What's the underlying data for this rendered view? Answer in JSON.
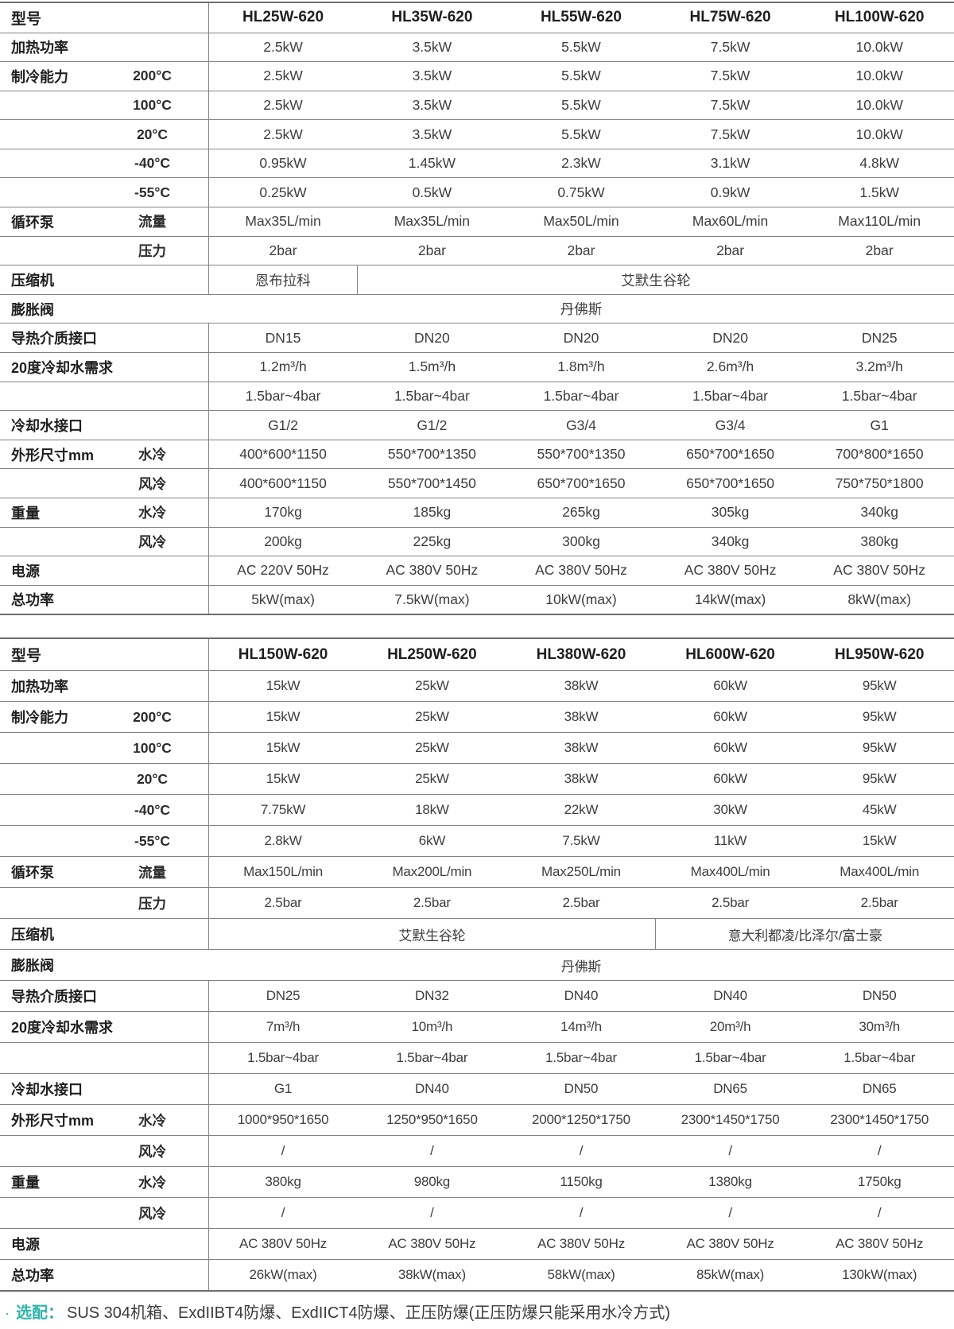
{
  "colors": {
    "accent_teal": "#2eb6ab",
    "border_gray": "#838383",
    "text_dark": "#3d3d3d"
  },
  "note": {
    "bullet": "·",
    "prefix": "选配：",
    "text": "SUS 304机箱、ExdIIBT4防爆、ExdIICT4防爆、正压防爆(正压防爆只能采用水冷方式)"
  },
  "tables": [
    {
      "header": {
        "label": "型号",
        "models": [
          "HL25W-620",
          "HL35W-620",
          "HL55W-620",
          "HL75W-620",
          "HL100W-620"
        ]
      },
      "rows": [
        {
          "label": "加热功率",
          "sub": "",
          "cells": [
            {
              "t": "2.5kW"
            },
            {
              "t": "3.5kW"
            },
            {
              "t": "5.5kW"
            },
            {
              "t": "7.5kW"
            },
            {
              "t": "10.0kW"
            }
          ]
        },
        {
          "label": "制冷能力",
          "sub": "200°C",
          "cells": [
            {
              "t": "2.5kW"
            },
            {
              "t": "3.5kW"
            },
            {
              "t": "5.5kW"
            },
            {
              "t": "7.5kW"
            },
            {
              "t": "10.0kW"
            }
          ]
        },
        {
          "label": "",
          "sub": "100°C",
          "cells": [
            {
              "t": "2.5kW"
            },
            {
              "t": "3.5kW"
            },
            {
              "t": "5.5kW"
            },
            {
              "t": "7.5kW"
            },
            {
              "t": "10.0kW"
            }
          ]
        },
        {
          "label": "",
          "sub": "20°C",
          "cells": [
            {
              "t": "2.5kW"
            },
            {
              "t": "3.5kW"
            },
            {
              "t": "5.5kW"
            },
            {
              "t": "7.5kW"
            },
            {
              "t": "10.0kW"
            }
          ]
        },
        {
          "label": "",
          "sub": "-40°C",
          "cells": [
            {
              "t": "0.95kW"
            },
            {
              "t": "1.45kW"
            },
            {
              "t": "2.3kW"
            },
            {
              "t": "3.1kW"
            },
            {
              "t": "4.8kW"
            }
          ]
        },
        {
          "label": "",
          "sub": "-55°C",
          "cells": [
            {
              "t": "0.25kW"
            },
            {
              "t": "0.5kW"
            },
            {
              "t": "0.75kW"
            },
            {
              "t": "0.9kW"
            },
            {
              "t": "1.5kW"
            }
          ]
        },
        {
          "label": "循环泵",
          "sub": "流量",
          "cells": [
            {
              "t": "Max35L/min"
            },
            {
              "t": "Max35L/min"
            },
            {
              "t": "Max50L/min"
            },
            {
              "t": "Max60L/min"
            },
            {
              "t": "Max110L/min"
            }
          ]
        },
        {
          "label": "",
          "sub": "压力",
          "cells": [
            {
              "t": "2bar"
            },
            {
              "t": "2bar"
            },
            {
              "t": "2bar"
            },
            {
              "t": "2bar"
            },
            {
              "t": "2bar"
            }
          ]
        },
        {
          "label": "压缩机",
          "sub": "",
          "cells": [
            {
              "t": "恩布拉科",
              "s": 1
            },
            {
              "t": "艾默生谷轮",
              "s": 4
            }
          ]
        },
        {
          "label": "膨胀阀",
          "sub": "",
          "cells": [
            {
              "t": "丹佛斯",
              "s": 5
            }
          ]
        },
        {
          "label": "导热介质接口",
          "sub": "",
          "cells": [
            {
              "t": "DN15"
            },
            {
              "t": "DN20"
            },
            {
              "t": "DN20"
            },
            {
              "t": "DN20"
            },
            {
              "t": "DN25"
            }
          ]
        },
        {
          "label": "20度冷却水需求",
          "sub": "",
          "cells": [
            {
              "t": "1.2m³/h"
            },
            {
              "t": "1.5m³/h"
            },
            {
              "t": "1.8m³/h"
            },
            {
              "t": "2.6m³/h"
            },
            {
              "t": "3.2m³/h"
            }
          ]
        },
        {
          "label": "",
          "sub": "",
          "cells": [
            {
              "t": "1.5bar~4bar"
            },
            {
              "t": "1.5bar~4bar"
            },
            {
              "t": "1.5bar~4bar"
            },
            {
              "t": "1.5bar~4bar"
            },
            {
              "t": "1.5bar~4bar"
            }
          ]
        },
        {
          "label": "冷却水接口",
          "sub": "",
          "cells": [
            {
              "t": "G1/2"
            },
            {
              "t": "G1/2"
            },
            {
              "t": "G3/4"
            },
            {
              "t": "G3/4"
            },
            {
              "t": "G1"
            }
          ]
        },
        {
          "label": "外形尺寸mm",
          "sub": "水冷",
          "cells": [
            {
              "t": "400*600*1150"
            },
            {
              "t": "550*700*1350"
            },
            {
              "t": "550*700*1350"
            },
            {
              "t": "650*700*1650"
            },
            {
              "t": "700*800*1650"
            }
          ]
        },
        {
          "label": "",
          "sub": "风冷",
          "cells": [
            {
              "t": "400*600*1150"
            },
            {
              "t": "550*700*1450"
            },
            {
              "t": "650*700*1650"
            },
            {
              "t": "650*700*1650"
            },
            {
              "t": "750*750*1800"
            }
          ]
        },
        {
          "label": "重量",
          "sub": "水冷",
          "cells": [
            {
              "t": "170kg"
            },
            {
              "t": "185kg"
            },
            {
              "t": "265kg"
            },
            {
              "t": "305kg"
            },
            {
              "t": "340kg"
            }
          ]
        },
        {
          "label": "",
          "sub": "风冷",
          "cells": [
            {
              "t": "200kg"
            },
            {
              "t": "225kg"
            },
            {
              "t": "300kg"
            },
            {
              "t": "340kg"
            },
            {
              "t": "380kg"
            }
          ]
        },
        {
          "label": "电源",
          "sub": "",
          "cells": [
            {
              "t": "AC 220V 50Hz"
            },
            {
              "t": "AC 380V 50Hz"
            },
            {
              "t": "AC 380V 50Hz"
            },
            {
              "t": "AC 380V 50Hz"
            },
            {
              "t": "AC 380V 50Hz"
            }
          ]
        },
        {
          "label": "总功率",
          "sub": "",
          "cells": [
            {
              "t": "5kW(max)"
            },
            {
              "t": "7.5kW(max)"
            },
            {
              "t": "10kW(max)"
            },
            {
              "t": "14kW(max)"
            },
            {
              "t": "8kW(max)"
            }
          ]
        }
      ]
    },
    {
      "header": {
        "label": "型号",
        "models": [
          "HL150W-620",
          "HL250W-620",
          "HL380W-620",
          "HL600W-620",
          "HL950W-620"
        ]
      },
      "rows": [
        {
          "label": "加热功率",
          "sub": "",
          "cells": [
            {
              "t": "15kW"
            },
            {
              "t": "25kW"
            },
            {
              "t": "38kW"
            },
            {
              "t": "60kW"
            },
            {
              "t": "95kW"
            }
          ]
        },
        {
          "label": "制冷能力",
          "sub": "200°C",
          "cells": [
            {
              "t": "15kW"
            },
            {
              "t": "25kW"
            },
            {
              "t": "38kW"
            },
            {
              "t": "60kW"
            },
            {
              "t": "95kW"
            }
          ]
        },
        {
          "label": "",
          "sub": "100°C",
          "cells": [
            {
              "t": "15kW"
            },
            {
              "t": "25kW"
            },
            {
              "t": "38kW"
            },
            {
              "t": "60kW"
            },
            {
              "t": "95kW"
            }
          ]
        },
        {
          "label": "",
          "sub": "20°C",
          "cells": [
            {
              "t": "15kW"
            },
            {
              "t": "25kW"
            },
            {
              "t": "38kW"
            },
            {
              "t": "60kW"
            },
            {
              "t": "95kW"
            }
          ]
        },
        {
          "label": "",
          "sub": "-40°C",
          "cells": [
            {
              "t": "7.75kW"
            },
            {
              "t": "18kW"
            },
            {
              "t": "22kW"
            },
            {
              "t": "30kW"
            },
            {
              "t": "45kW"
            }
          ]
        },
        {
          "label": "",
          "sub": "-55°C",
          "cells": [
            {
              "t": "2.8kW"
            },
            {
              "t": "6kW"
            },
            {
              "t": "7.5kW"
            },
            {
              "t": "11kW"
            },
            {
              "t": "15kW"
            }
          ]
        },
        {
          "label": "循环泵",
          "sub": "流量",
          "cells": [
            {
              "t": "Max150L/min"
            },
            {
              "t": "Max200L/min"
            },
            {
              "t": "Max250L/min"
            },
            {
              "t": "Max400L/min"
            },
            {
              "t": "Max400L/min"
            }
          ]
        },
        {
          "label": "",
          "sub": "压力",
          "cells": [
            {
              "t": "2.5bar"
            },
            {
              "t": "2.5bar"
            },
            {
              "t": "2.5bar"
            },
            {
              "t": "2.5bar"
            },
            {
              "t": "2.5bar"
            }
          ]
        },
        {
          "label": "压缩机",
          "sub": "",
          "cells": [
            {
              "t": "艾默生谷轮",
              "s": 3
            },
            {
              "t": "意大利都凌/比泽尔/富士豪",
              "s": 2
            }
          ]
        },
        {
          "label": "膨胀阀",
          "sub": "",
          "cells": [
            {
              "t": "丹佛斯",
              "s": 5
            }
          ]
        },
        {
          "label": "导热介质接口",
          "sub": "",
          "cells": [
            {
              "t": "DN25"
            },
            {
              "t": "DN32"
            },
            {
              "t": "DN40"
            },
            {
              "t": "DN40"
            },
            {
              "t": "DN50"
            }
          ]
        },
        {
          "label": "20度冷却水需求",
          "sub": "",
          "cells": [
            {
              "t": "7m³/h"
            },
            {
              "t": "10m³/h"
            },
            {
              "t": "14m³/h"
            },
            {
              "t": "20m³/h"
            },
            {
              "t": "30m³/h"
            }
          ]
        },
        {
          "label": "",
          "sub": "",
          "cells": [
            {
              "t": "1.5bar~4bar"
            },
            {
              "t": "1.5bar~4bar"
            },
            {
              "t": "1.5bar~4bar"
            },
            {
              "t": "1.5bar~4bar"
            },
            {
              "t": "1.5bar~4bar"
            }
          ]
        },
        {
          "label": "冷却水接口",
          "sub": "",
          "cells": [
            {
              "t": "G1"
            },
            {
              "t": "DN40"
            },
            {
              "t": "DN50"
            },
            {
              "t": "DN65"
            },
            {
              "t": "DN65"
            }
          ]
        },
        {
          "label": "外形尺寸mm",
          "sub": "水冷",
          "cells": [
            {
              "t": "1000*950*1650"
            },
            {
              "t": "1250*950*1650"
            },
            {
              "t": "2000*1250*1750"
            },
            {
              "t": "2300*1450*1750"
            },
            {
              "t": "2300*1450*1750"
            }
          ]
        },
        {
          "label": "",
          "sub": "风冷",
          "cells": [
            {
              "t": "/"
            },
            {
              "t": "/"
            },
            {
              "t": "/"
            },
            {
              "t": "/"
            },
            {
              "t": "/"
            }
          ]
        },
        {
          "label": "重量",
          "sub": "水冷",
          "cells": [
            {
              "t": "380kg"
            },
            {
              "t": "980kg"
            },
            {
              "t": "1150kg"
            },
            {
              "t": "1380kg"
            },
            {
              "t": "1750kg"
            }
          ]
        },
        {
          "label": "",
          "sub": "风冷",
          "cells": [
            {
              "t": "/"
            },
            {
              "t": "/"
            },
            {
              "t": "/"
            },
            {
              "t": "/"
            },
            {
              "t": "/"
            }
          ]
        },
        {
          "label": "电源",
          "sub": "",
          "cells": [
            {
              "t": "AC 380V 50Hz"
            },
            {
              "t": "AC 380V 50Hz"
            },
            {
              "t": "AC 380V 50Hz"
            },
            {
              "t": "AC 380V 50Hz"
            },
            {
              "t": "AC 380V 50Hz"
            }
          ]
        },
        {
          "label": "总功率",
          "sub": "",
          "cells": [
            {
              "t": "26kW(max)"
            },
            {
              "t": "38kW(max)"
            },
            {
              "t": "58kW(max)"
            },
            {
              "t": "85kW(max)"
            },
            {
              "t": "130kW(max)"
            }
          ]
        }
      ]
    }
  ]
}
